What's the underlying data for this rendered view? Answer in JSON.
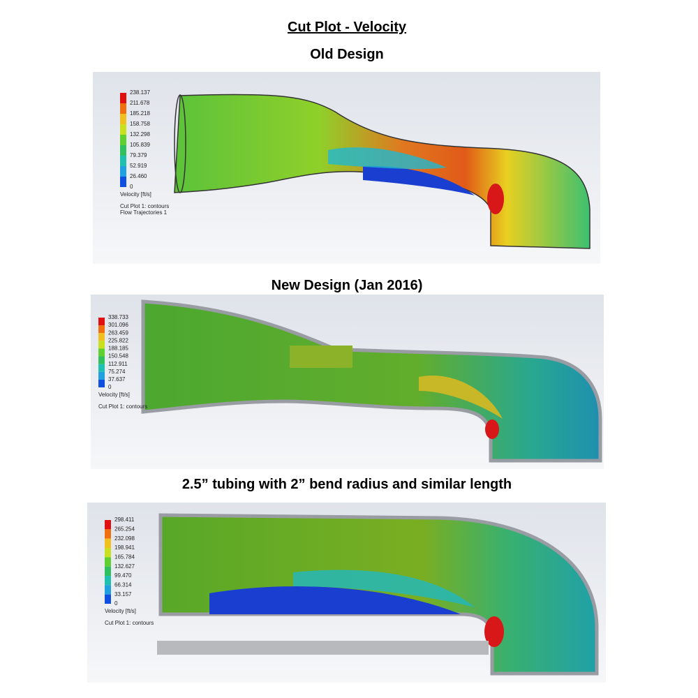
{
  "title": "Cut Plot - Velocity",
  "panels": [
    {
      "heading": "Old Design",
      "legend": {
        "labels": [
          "238.137",
          "211.678",
          "185.218",
          "158.758",
          "132.298",
          "105.839",
          "79.379",
          "52.919",
          "26.460",
          "0"
        ],
        "unit": "Velocity [ft/s]"
      },
      "notes": [
        "Cut Plot 1: contours",
        "Flow Trajectories 1"
      ]
    },
    {
      "heading": "New Design (Jan 2016)",
      "legend": {
        "labels": [
          "338.733",
          "301.096",
          "263.459",
          "225.822",
          "188.185",
          "150.548",
          "112.911",
          "75.274",
          "37.637",
          "0"
        ],
        "unit": "Velocity [ft/s]"
      },
      "notes": [
        "Cut Plot 1: contours"
      ]
    },
    {
      "heading": "2.5” tubing with 2” bend radius and similar length",
      "legend": {
        "labels": [
          "298.411",
          "265.254",
          "232.098",
          "198.941",
          "165.784",
          "132.627",
          "99.470",
          "66.314",
          "33.157",
          "0"
        ],
        "unit": "Velocity [ft/s]"
      },
      "notes": [
        "Cut Plot 1: contours"
      ]
    }
  ]
}
